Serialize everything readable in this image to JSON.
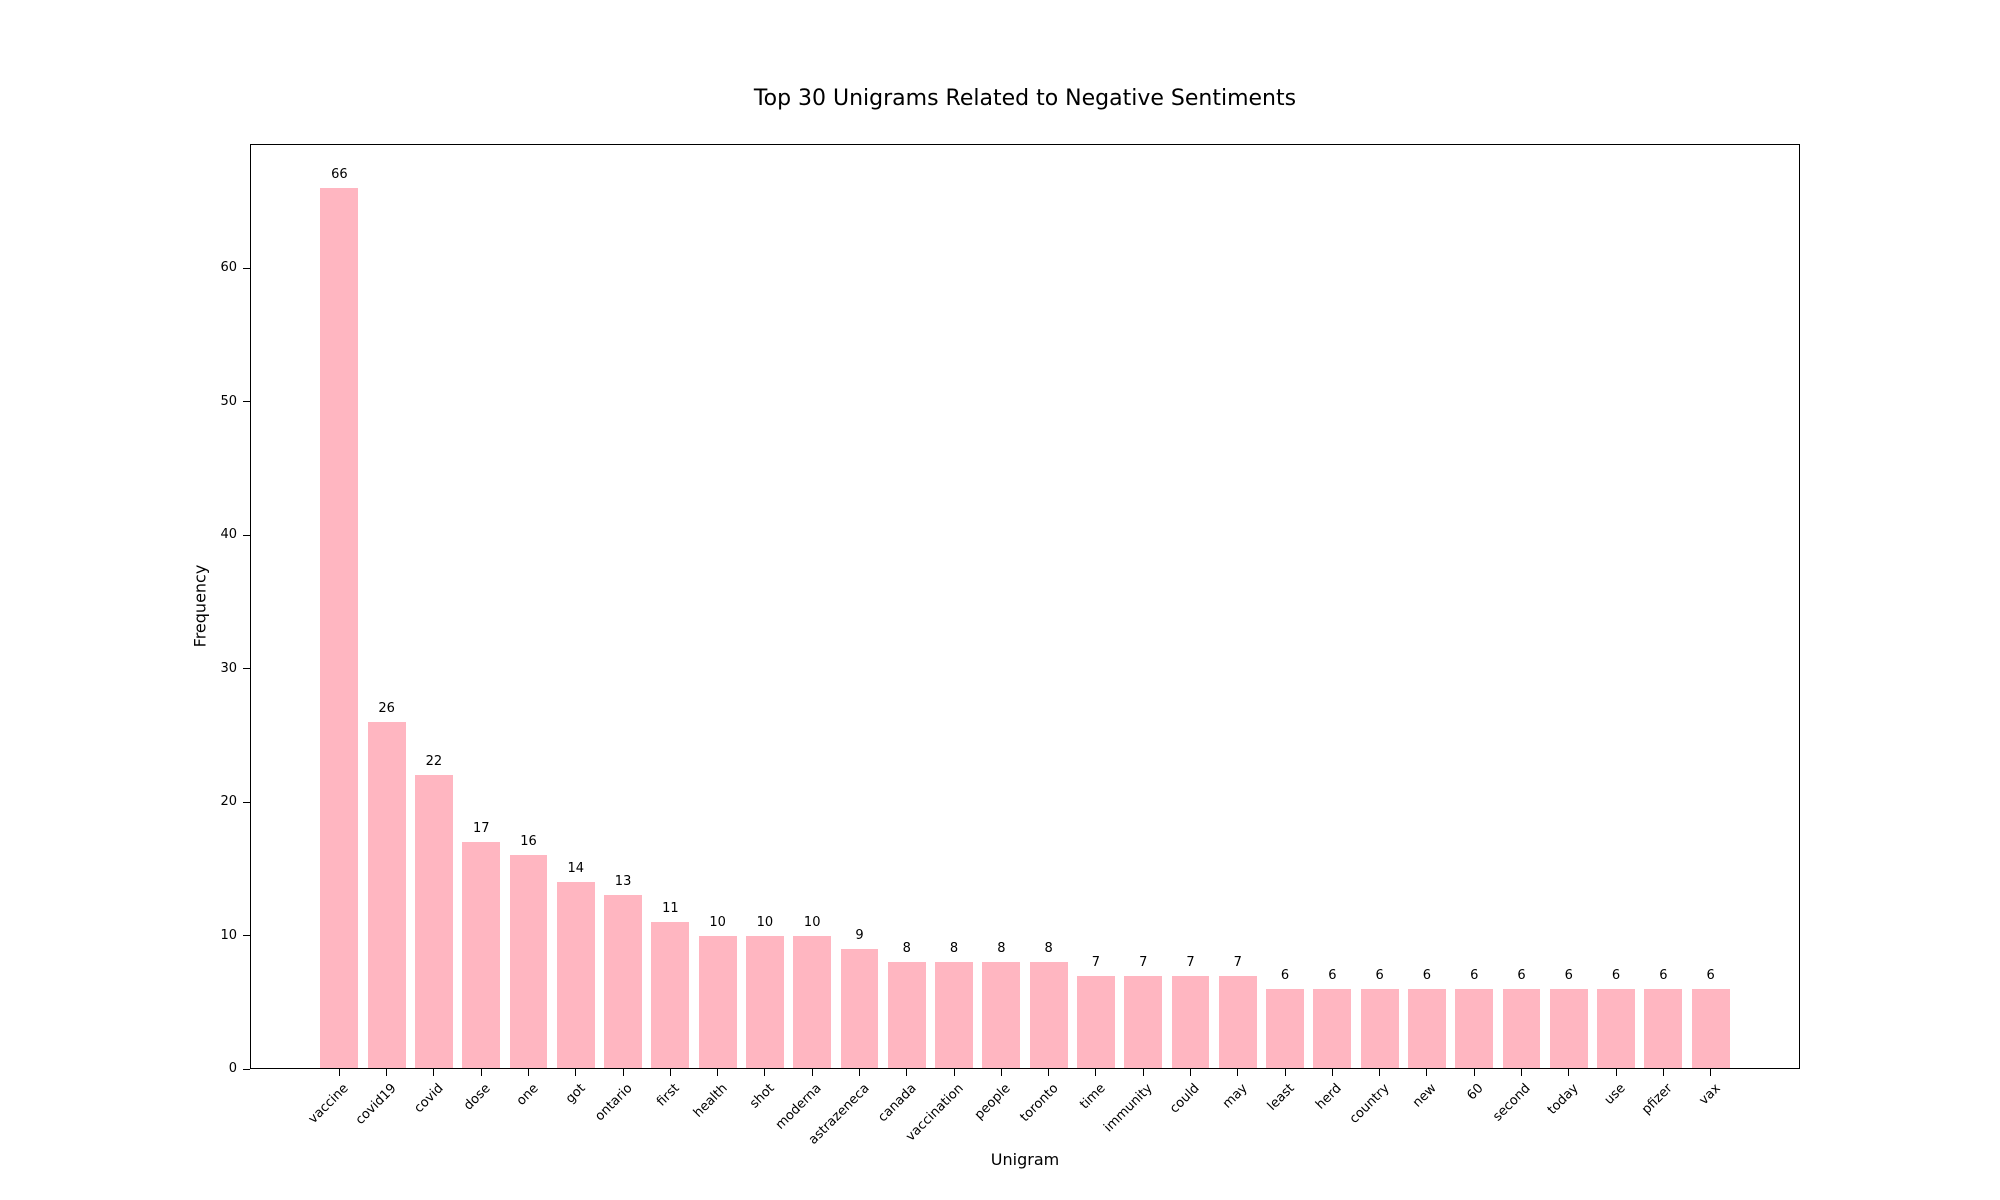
{
  "chart_data": {
    "type": "bar",
    "title": "Top 30 Unigrams Related to Negative Sentiments",
    "xlabel": "Unigram",
    "ylabel": "Frequency",
    "categories": [
      "vaccine",
      "covid19",
      "covid",
      "dose",
      "one",
      "got",
      "ontario",
      "first",
      "health",
      "shot",
      "moderna",
      "astrazeneca",
      "canada",
      "vaccination",
      "people",
      "toronto",
      "time",
      "immunity",
      "could",
      "may",
      "least",
      "herd",
      "country",
      "new",
      "60",
      "second",
      "today",
      "use",
      "pfizer",
      "vax"
    ],
    "values": [
      66,
      26,
      22,
      17,
      16,
      14,
      13,
      11,
      10,
      10,
      10,
      9,
      8,
      8,
      8,
      8,
      7,
      7,
      7,
      7,
      6,
      6,
      6,
      6,
      6,
      6,
      6,
      6,
      6,
      6
    ],
    "value_labels": [
      "66",
      "26",
      "22",
      "17",
      "16",
      "14",
      "13",
      "11",
      "10",
      "10",
      "10",
      "9",
      "8",
      "8",
      "8",
      "8",
      "7",
      "7",
      "7",
      "7",
      "6",
      "6",
      "6",
      "6",
      "6",
      "6",
      "6",
      "6",
      "6",
      "6"
    ],
    "yticks": [
      0,
      10,
      20,
      30,
      40,
      50,
      60
    ],
    "ylim": [
      0,
      69.3
    ],
    "bar_color": "#FFB6C1",
    "axis_color": "#000000",
    "text_color": "#000000",
    "background_color": "#FFFFFF",
    "grid": "off",
    "legend": "none",
    "x_tick_rotation_degrees": 45
  }
}
